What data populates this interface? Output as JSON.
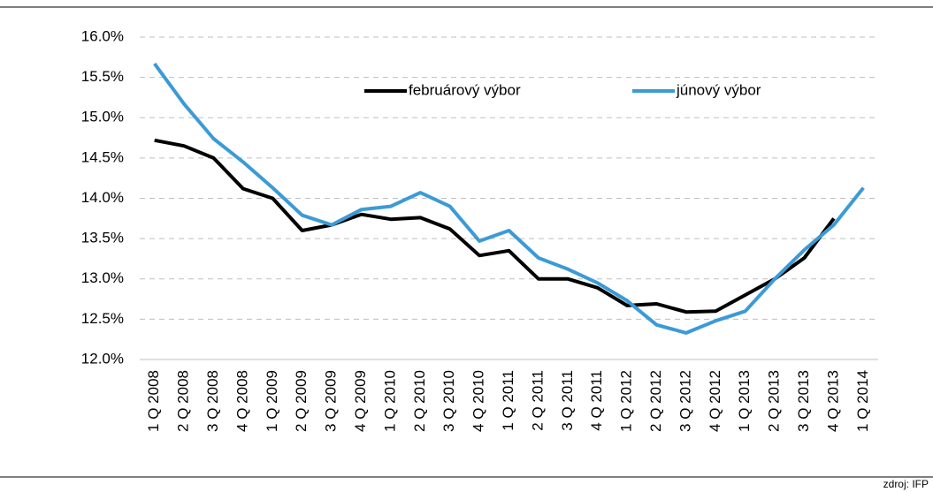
{
  "chart_data": {
    "type": "line",
    "categories": [
      "1 Q 2008",
      "2 Q 2008",
      "3 Q 2008",
      "4 Q 2008",
      "1 Q 2009",
      "2 Q 2009",
      "3 Q 2009",
      "4 Q 2009",
      "1 Q 2010",
      "2 Q 2010",
      "3 Q 2010",
      "4 Q 2010",
      "1 Q 2011",
      "2 Q 2011",
      "3 Q 2011",
      "4 Q 2011",
      "1 Q 2012",
      "2 Q 2012",
      "3 Q 2012",
      "4 Q 2012",
      "1 Q 2013",
      "2 Q 2013",
      "3 Q 2013",
      "4 Q 2013",
      "1 Q 2014"
    ],
    "series": [
      {
        "name": "februárový výbor",
        "color": "#000000",
        "values": [
          14.72,
          14.65,
          14.5,
          14.12,
          14.0,
          13.6,
          13.67,
          13.8,
          13.74,
          13.76,
          13.62,
          13.29,
          13.35,
          13.0,
          13.0,
          12.89,
          12.67,
          12.69,
          12.59,
          12.6,
          12.8,
          13.0,
          13.26,
          13.75,
          null
        ]
      },
      {
        "name": "júnový výbor",
        "color": "#3c9ad6",
        "values": [
          15.67,
          15.17,
          14.74,
          14.45,
          14.13,
          13.79,
          13.67,
          13.86,
          13.9,
          14.07,
          13.9,
          13.47,
          13.6,
          13.26,
          13.12,
          12.95,
          12.73,
          12.43,
          12.33,
          12.48,
          12.6,
          13.0,
          13.36,
          13.67,
          14.13
        ]
      }
    ],
    "ylim": [
      12.0,
      16.0
    ],
    "yticks": [
      {
        "value": 12,
        "label": "12.0%"
      },
      {
        "value": 12.5,
        "label": "12.5%"
      },
      {
        "value": 13,
        "label": "13.0%"
      },
      {
        "value": 13.5,
        "label": "13.5%"
      },
      {
        "value": 14,
        "label": "14.0%"
      },
      {
        "value": 14.5,
        "label": "14.5%"
      },
      {
        "value": 15,
        "label": "15.0%"
      },
      {
        "value": 15.5,
        "label": "15.5%"
      },
      {
        "value": 16,
        "label": "16.0%"
      }
    ],
    "grid": true,
    "source": "zdroj: IFP"
  }
}
